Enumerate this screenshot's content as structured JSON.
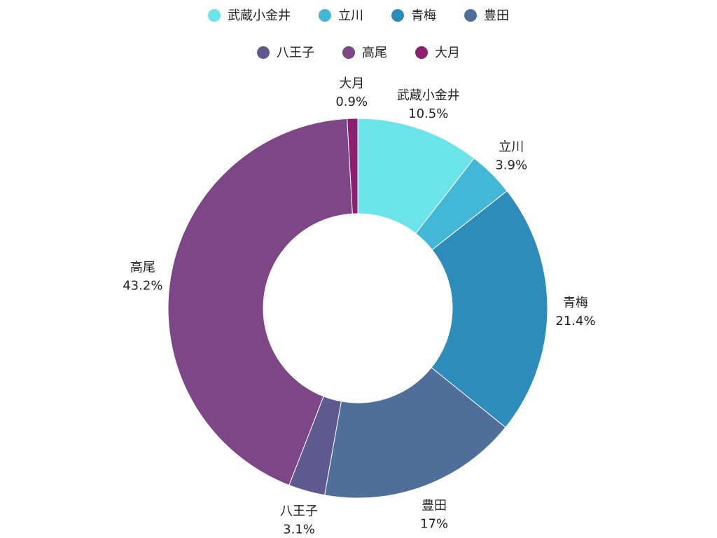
{
  "chart_data": {
    "type": "pie",
    "variant": "donut",
    "legend_position": "top",
    "categories": [
      "武蔵小金井",
      "立川",
      "青梅",
      "豊田",
      "八王子",
      "高尾",
      "大月"
    ],
    "values": [
      10.5,
      3.9,
      21.4,
      17,
      3.1,
      43.2,
      0.9
    ],
    "labels": [
      "10.5%",
      "3.9%",
      "21.4%",
      "17%",
      "3.1%",
      "43.2%",
      "0.9%"
    ],
    "colors": [
      "#6ae4e8",
      "#43b7d6",
      "#2e8cba",
      "#4f6e99",
      "#5e5a8f",
      "#7c4687",
      "#8c1f6f"
    ]
  }
}
